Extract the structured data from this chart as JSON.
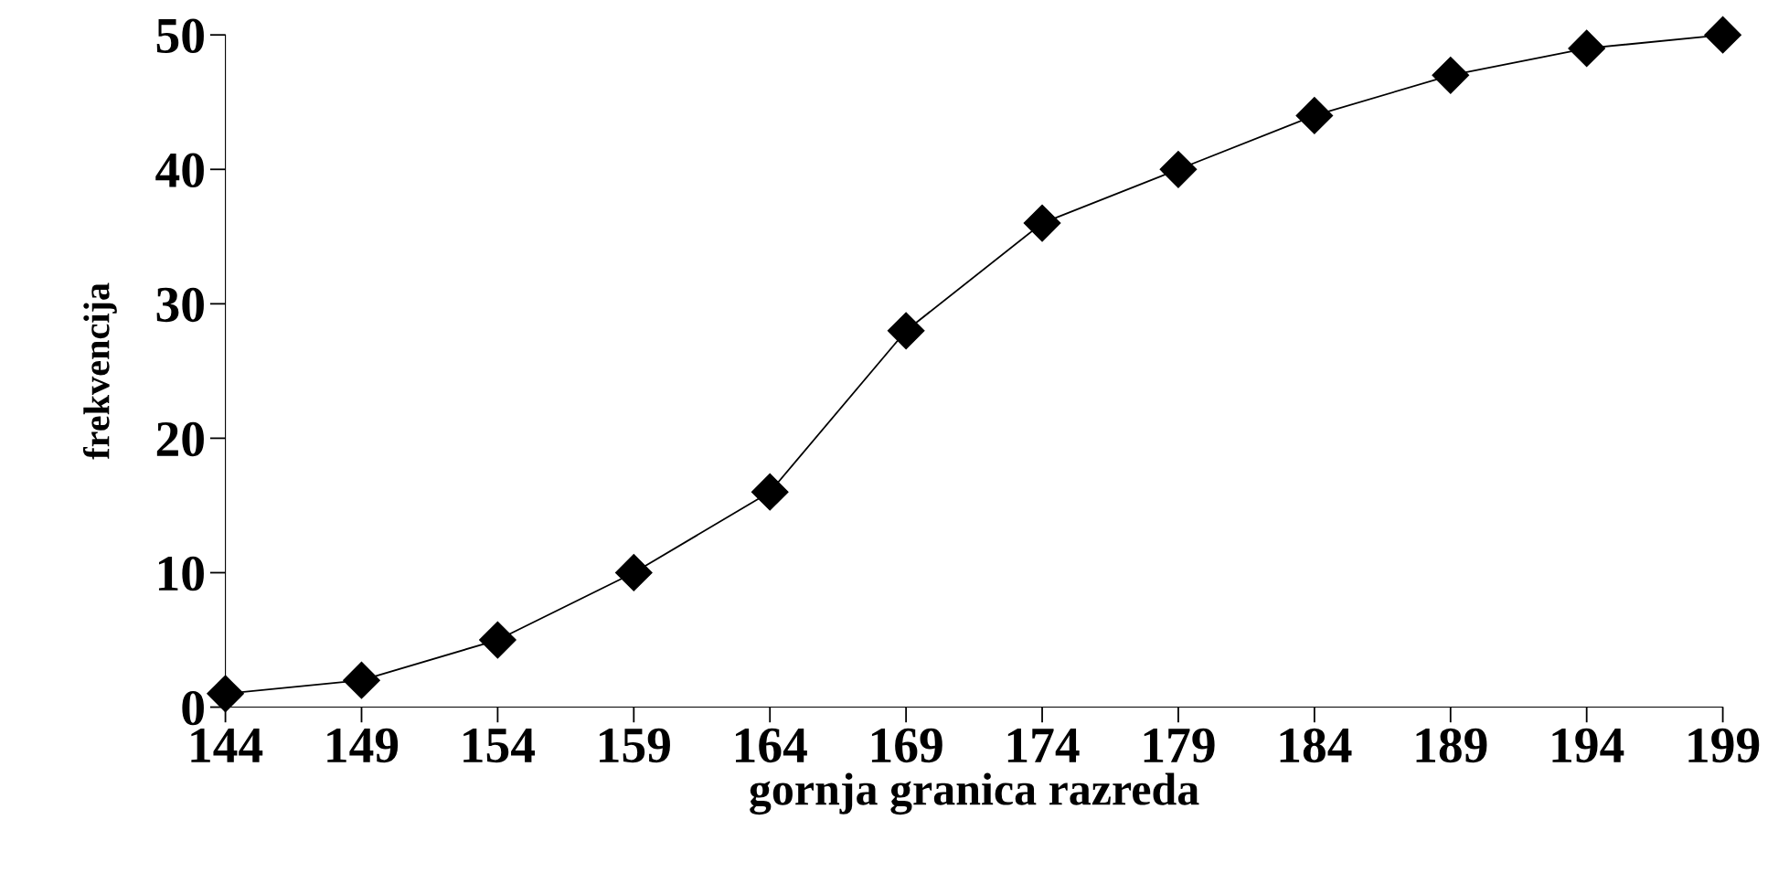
{
  "chart_data": {
    "type": "line",
    "xlabel": "gornja granica razreda",
    "ylabel": "frekvencija",
    "categories": [
      "144",
      "149",
      "154",
      "159",
      "164",
      "169",
      "174",
      "179",
      "184",
      "189",
      "194",
      "199"
    ],
    "series": [
      {
        "color": "#000000",
        "values": [
          1,
          2,
          5,
          10,
          16,
          28,
          36,
          40,
          44,
          47,
          49,
          50
        ]
      }
    ],
    "ylim": [
      0,
      50
    ],
    "yticks": [
      0,
      10,
      20,
      30,
      40,
      50
    ],
    "grid": false,
    "legend": false,
    "marker": "diamond",
    "line_style": "solid"
  }
}
